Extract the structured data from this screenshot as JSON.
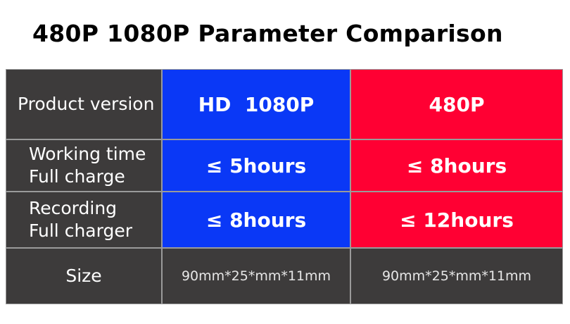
{
  "title": "480P 1080P Parameter Comparison",
  "table": {
    "rows": [
      {
        "label": [
          "Product version"
        ],
        "cells": [
          "HD  1080P",
          "480P"
        ]
      },
      {
        "label": [
          "Working time",
          "Full charge"
        ],
        "cells": [
          "≤ 5hours",
          "≤ 8hours"
        ]
      },
      {
        "label": [
          "Recording",
          "Full charger"
        ],
        "cells": [
          "≤ 8hours",
          "≤ 12hours"
        ]
      },
      {
        "label": [
          "Size"
        ],
        "cells": [
          "90mm*25*mm*11mm",
          "90mm*25*mm*11mm"
        ]
      }
    ]
  }
}
